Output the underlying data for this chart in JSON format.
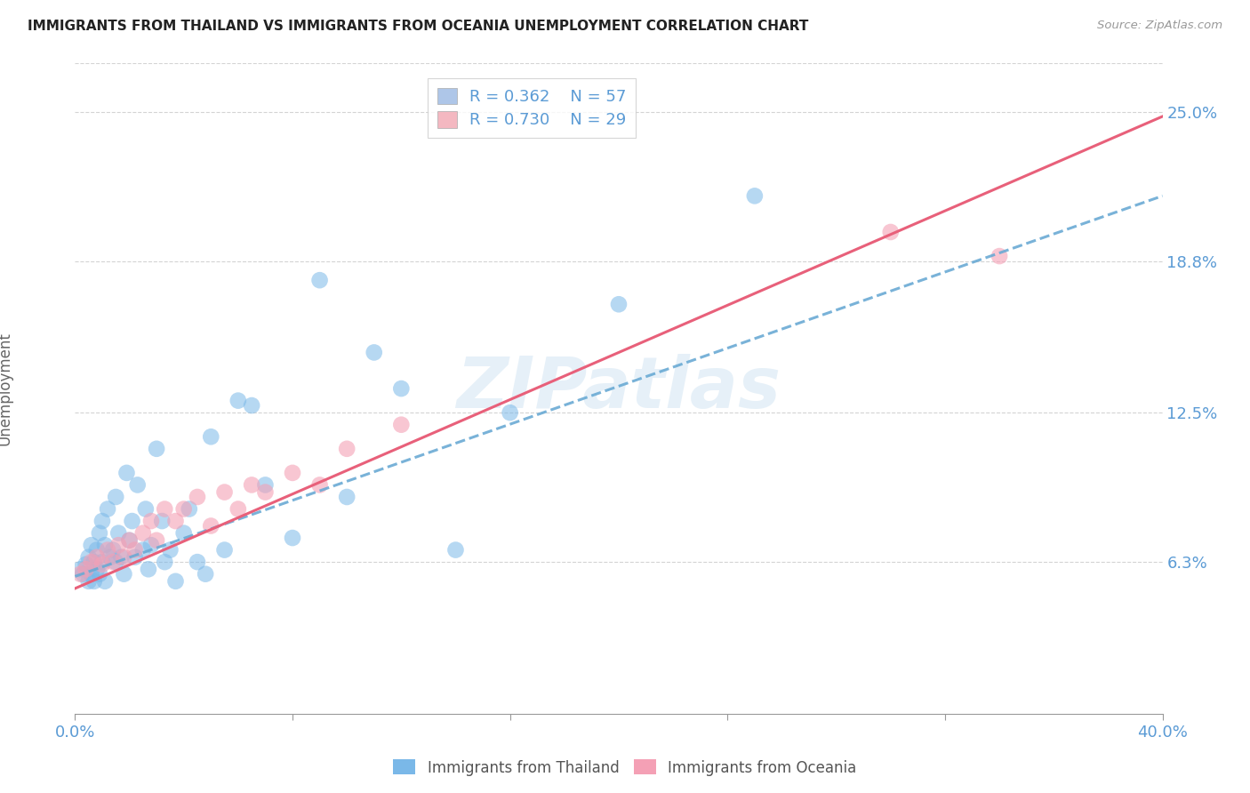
{
  "title": "IMMIGRANTS FROM THAILAND VS IMMIGRANTS FROM OCEANIA UNEMPLOYMENT CORRELATION CHART",
  "source": "Source: ZipAtlas.com",
  "ylabel": "Unemployment",
  "xlim": [
    0.0,
    0.4
  ],
  "ylim": [
    0.0,
    0.27
  ],
  "ytick_labels": [
    "6.3%",
    "12.5%",
    "18.8%",
    "25.0%"
  ],
  "ytick_values": [
    0.063,
    0.125,
    0.188,
    0.25
  ],
  "legend_entry1": {
    "R": "0.362",
    "N": "57",
    "color": "#aec6e8"
  },
  "legend_entry2": {
    "R": "0.730",
    "N": "29",
    "color": "#f4b8c1"
  },
  "watermark_text": "ZIPatlas",
  "background_color": "#ffffff",
  "grid_color": "#d0d0d0",
  "thailand_color": "#7ab8e8",
  "oceania_color": "#f4a0b5",
  "line_thailand_color": "#6aaad4",
  "line_oceania_color": "#e8607a",
  "title_color": "#222222",
  "tick_color": "#5b9bd5",
  "thai_line_start_y": 0.057,
  "thai_line_end_y": 0.215,
  "oce_line_start_y": 0.052,
  "oce_line_end_y": 0.248,
  "thailand_scatter_x": [
    0.002,
    0.003,
    0.004,
    0.005,
    0.005,
    0.006,
    0.006,
    0.007,
    0.007,
    0.008,
    0.008,
    0.009,
    0.009,
    0.01,
    0.01,
    0.011,
    0.011,
    0.012,
    0.013,
    0.014,
    0.015,
    0.015,
    0.016,
    0.017,
    0.018,
    0.019,
    0.02,
    0.021,
    0.022,
    0.023,
    0.025,
    0.026,
    0.027,
    0.028,
    0.03,
    0.032,
    0.033,
    0.035,
    0.037,
    0.04,
    0.042,
    0.045,
    0.048,
    0.05,
    0.055,
    0.06,
    0.065,
    0.07,
    0.08,
    0.09,
    0.1,
    0.11,
    0.12,
    0.14,
    0.16,
    0.2,
    0.25
  ],
  "thailand_scatter_y": [
    0.06,
    0.058,
    0.062,
    0.055,
    0.065,
    0.058,
    0.07,
    0.063,
    0.055,
    0.068,
    0.06,
    0.075,
    0.058,
    0.08,
    0.063,
    0.07,
    0.055,
    0.085,
    0.065,
    0.068,
    0.09,
    0.063,
    0.075,
    0.065,
    0.058,
    0.1,
    0.072,
    0.08,
    0.065,
    0.095,
    0.068,
    0.085,
    0.06,
    0.07,
    0.11,
    0.08,
    0.063,
    0.068,
    0.055,
    0.075,
    0.085,
    0.063,
    0.058,
    0.115,
    0.068,
    0.13,
    0.128,
    0.095,
    0.073,
    0.18,
    0.09,
    0.15,
    0.135,
    0.068,
    0.125,
    0.17,
    0.215
  ],
  "oceania_scatter_x": [
    0.002,
    0.004,
    0.006,
    0.008,
    0.01,
    0.012,
    0.014,
    0.016,
    0.018,
    0.02,
    0.022,
    0.025,
    0.028,
    0.03,
    0.033,
    0.037,
    0.04,
    0.045,
    0.05,
    0.055,
    0.06,
    0.065,
    0.07,
    0.08,
    0.09,
    0.1,
    0.12,
    0.3,
    0.34
  ],
  "oceania_scatter_y": [
    0.058,
    0.06,
    0.063,
    0.065,
    0.062,
    0.068,
    0.063,
    0.07,
    0.065,
    0.072,
    0.068,
    0.075,
    0.08,
    0.072,
    0.085,
    0.08,
    0.085,
    0.09,
    0.078,
    0.092,
    0.085,
    0.095,
    0.092,
    0.1,
    0.095,
    0.11,
    0.12,
    0.2,
    0.19
  ]
}
